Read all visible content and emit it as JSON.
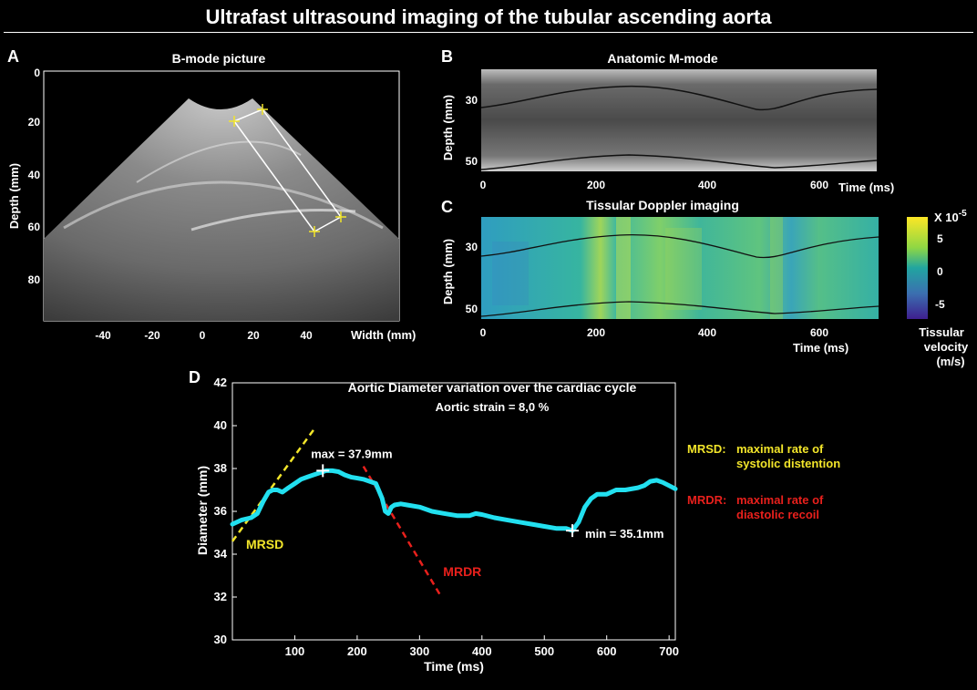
{
  "title": "Ultrafast ultrasound imaging of the  tubular ascending aorta",
  "panelA": {
    "letter": "A",
    "title": "B-mode picture",
    "ylabel": "Depth (mm)",
    "xlabel": "Width (mm)",
    "yticks": [
      "0",
      "20",
      "40",
      "60",
      "80"
    ],
    "xticks": [
      "-40",
      "-20",
      "0",
      "20",
      "40"
    ]
  },
  "panelB": {
    "letter": "B",
    "title": "Anatomic M-mode",
    "ylabel": "Depth (mm)",
    "xlabel": "Time (ms)",
    "yticks": [
      "30",
      "50"
    ],
    "xticks": [
      "0",
      "200",
      "400",
      "600"
    ]
  },
  "panelC": {
    "letter": "C",
    "title": "Tissular Doppler imaging",
    "ylabel": "Depth (mm)",
    "xlabel": "Time (ms)",
    "yticks": [
      "30",
      "50"
    ],
    "xticks": [
      "0",
      "200",
      "400",
      "600"
    ],
    "colorbar": {
      "scale": "X 10",
      "exponent": "-5",
      "ticks": [
        "5",
        "0",
        "-5"
      ],
      "label_lines": [
        "Tissular",
        "velocity",
        "(m/s)"
      ],
      "colors": [
        "#fde725",
        "#35b779",
        "#21a5a0",
        "#3b528b",
        "#3e1f8f"
      ]
    }
  },
  "panelD": {
    "letter": "D",
    "title": "Aortic Diameter variation over the cardiac cycle",
    "subtitle": "Aortic strain = 8,0 %",
    "legend": {
      "mrsd_key": "MRSD:",
      "mrsd_line1": "maximal rate  of",
      "mrsd_line2": "systolic distention",
      "mrdr_key": "MRDR:",
      "mrdr_line1": "maximal rate of",
      "mrdr_line2": "diastolic recoil"
    },
    "annotations": {
      "max": "max = 37.9mm",
      "min": "min = 35.1mm",
      "mrsd": "MRSD",
      "mrdr": "MRDR"
    },
    "colors": {
      "curve": "#22e0f0",
      "mrsd": "#f2e52a",
      "mrdr": "#e8201c"
    }
  },
  "chart_data": {
    "type": "line",
    "title": "Aortic Diameter variation over the cardiac cycle",
    "xlabel": "Time (ms)",
    "ylabel": "Diameter (mm)",
    "xlim": [
      0,
      710
    ],
    "ylim": [
      30,
      42
    ],
    "xticks": [
      100,
      200,
      300,
      400,
      500,
      600,
      700
    ],
    "yticks": [
      30,
      32,
      34,
      36,
      38,
      40,
      42
    ],
    "series": [
      {
        "x": [
          0,
          15,
          30,
          40,
          50,
          58,
          65,
          72,
          80,
          90,
          100,
          110,
          120,
          130,
          140,
          150,
          160,
          170,
          180,
          190,
          200,
          210,
          220,
          230,
          240,
          245,
          250,
          255,
          260,
          270,
          280,
          300,
          320,
          340,
          360,
          380,
          390,
          400,
          420,
          440,
          460,
          480,
          500,
          520,
          535,
          545,
          555,
          565,
          575,
          585,
          600,
          615,
          630,
          650,
          660,
          670,
          680,
          690,
          700,
          710
        ],
        "y": [
          35.4,
          35.6,
          35.7,
          35.9,
          36.5,
          36.9,
          37.0,
          37.0,
          36.9,
          37.1,
          37.3,
          37.5,
          37.6,
          37.7,
          37.8,
          37.9,
          37.9,
          37.85,
          37.7,
          37.6,
          37.55,
          37.5,
          37.4,
          37.3,
          36.6,
          36.0,
          35.9,
          36.2,
          36.3,
          36.35,
          36.3,
          36.2,
          36.0,
          35.9,
          35.8,
          35.8,
          35.9,
          35.85,
          35.7,
          35.6,
          35.5,
          35.4,
          35.3,
          35.2,
          35.2,
          35.1,
          35.5,
          36.2,
          36.6,
          36.8,
          36.8,
          37.0,
          37.0,
          37.1,
          37.2,
          37.4,
          37.45,
          37.35,
          37.2,
          37.05
        ]
      }
    ],
    "mrsd_line": {
      "x": [
        0,
        130
      ],
      "y": [
        34.6,
        39.8
      ]
    },
    "mrdr_line": {
      "x": [
        210,
        335
      ],
      "y": [
        38.1,
        32.0
      ]
    },
    "max_point": {
      "x": 145,
      "y": 37.9
    },
    "min_point": {
      "x": 545,
      "y": 35.1
    }
  }
}
